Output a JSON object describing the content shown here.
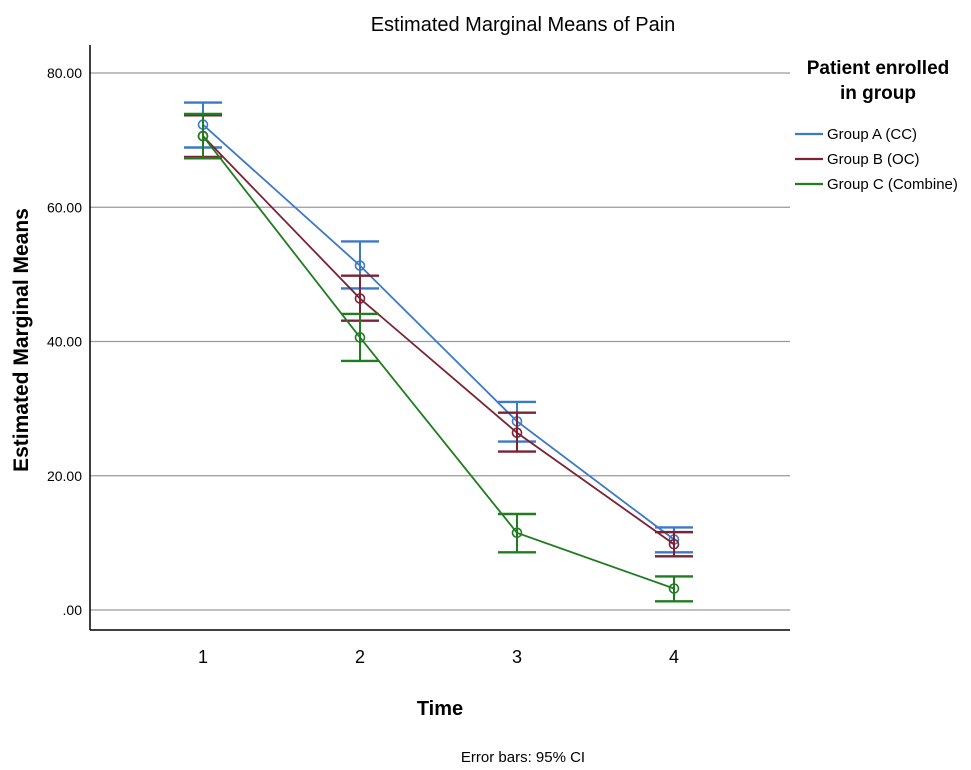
{
  "chart_data": {
    "type": "line",
    "title": "Estimated Marginal Means of Pain",
    "xlabel": "Time",
    "ylabel": "Estimated Marginal Means",
    "categories": [
      "1",
      "2",
      "3",
      "4"
    ],
    "ylim": [
      0,
      80
    ],
    "yticks": [
      0,
      20,
      40,
      60,
      80
    ],
    "ytick_labels": [
      ".00",
      "20.00",
      "40.00",
      "60.00",
      "80.00"
    ],
    "grid": true,
    "legend": {
      "title_lines": [
        "Patient enrolled",
        "in group"
      ],
      "placement": "right"
    },
    "series": [
      {
        "name": "Group A (CC)",
        "color": "#3d78c9",
        "values": [
          72.3,
          51.3,
          28.1,
          10.5
        ],
        "ci_lower": [
          68.9,
          47.9,
          25.1,
          8.6
        ],
        "ci_upper": [
          75.6,
          54.9,
          31.0,
          12.3
        ]
      },
      {
        "name": "Group B (OC)",
        "color": "#7b2235",
        "values": [
          70.6,
          46.4,
          26.4,
          9.8
        ],
        "ci_lower": [
          67.5,
          43.1,
          23.6,
          8.0
        ],
        "ci_upper": [
          73.7,
          49.8,
          29.4,
          11.6
        ]
      },
      {
        "name": "Group C (Combine)",
        "color": "#1f7d1f",
        "values": [
          70.6,
          40.6,
          11.5,
          3.2
        ],
        "ci_lower": [
          67.3,
          37.1,
          8.6,
          1.3
        ],
        "ci_upper": [
          73.9,
          44.1,
          14.3,
          5.0
        ]
      }
    ],
    "note": "Error bars: 95% CI"
  }
}
